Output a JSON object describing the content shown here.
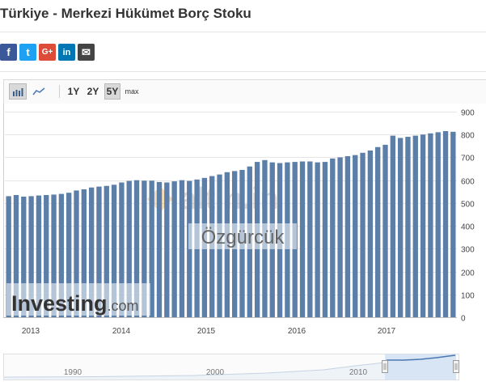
{
  "page": {
    "title": "Türkiye - Merkezi Hükümet Borç Stoku"
  },
  "share": [
    {
      "name": "facebook",
      "glyph": "f"
    },
    {
      "name": "twitter",
      "glyph": "t"
    },
    {
      "name": "google-plus",
      "glyph": "G+"
    },
    {
      "name": "linkedin",
      "glyph": "in"
    },
    {
      "name": "email",
      "glyph": "✉"
    }
  ],
  "toolbar": {
    "ranges": [
      "1Y",
      "2Y",
      "5Y",
      "max"
    ],
    "active_range": "5Y"
  },
  "colors": {
    "bar": "#5b7fa8",
    "grid": "#e6e6e6",
    "navigator_fill": "#cfe0f3",
    "navigator_line": "#4a78b0"
  },
  "watermarks": {
    "altin": "altin.in",
    "user": "Özgürcük",
    "investing": "Investing",
    "investing_suffix": ".com"
  },
  "navigator": {
    "labels": [
      "1990",
      "2000",
      "2010"
    ]
  },
  "chart_data": {
    "type": "bar",
    "y_axis_position": "right",
    "ylim": [
      0,
      900
    ],
    "yticks": [
      0,
      100,
      200,
      300,
      400,
      500,
      600,
      700,
      800,
      900
    ],
    "xticks": [
      "2013",
      "2014",
      "2015",
      "2016",
      "2017"
    ],
    "grid": true,
    "series": [
      {
        "values": [
          530,
          535,
          528,
          530,
          533,
          535,
          537,
          540,
          545,
          555,
          560,
          568,
          572,
          575,
          580,
          590,
          597,
          600,
          598,
          598,
          592,
          590,
          595,
          600,
          597,
          603,
          610,
          618,
          625,
          635,
          640,
          645,
          660,
          680,
          688,
          678,
          675,
          678,
          680,
          682,
          682,
          678,
          680,
          695,
          700,
          705,
          710,
          720,
          730,
          745,
          755,
          795,
          785,
          790,
          795,
          800,
          805,
          810,
          815,
          812
        ]
      }
    ]
  }
}
